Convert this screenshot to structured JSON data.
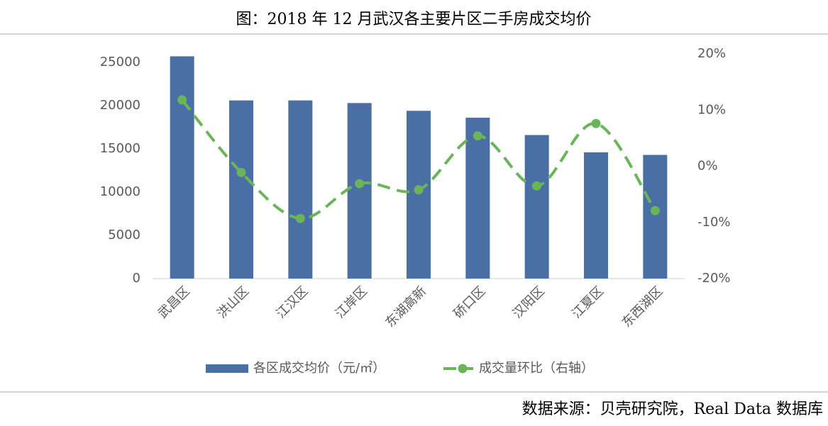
{
  "chart_data": {
    "type": "bar",
    "title": "图：2018 年 12 月武汉各主要片区二手房成交均价",
    "source": "数据来源：贝壳研究院，Real Data 数据库",
    "categories": [
      "武昌区",
      "洪山区",
      "江汉区",
      "江岸区",
      "东湖高新",
      "硚口区",
      "汉阳区",
      "江夏区",
      "东西湖区"
    ],
    "series": [
      {
        "name": "各区成交均价（元/㎡）",
        "type": "bar",
        "color": "#4a6fa5",
        "values": [
          25700,
          20600,
          20600,
          20300,
          19400,
          18600,
          16600,
          14600,
          14300
        ]
      },
      {
        "name": "成交量环比（右轴）",
        "type": "line",
        "axis": "y2",
        "color": "#6ab55a",
        "values": [
          11.8,
          -1.1,
          -9.3,
          -3.1,
          -4.2,
          5.4,
          -3.5,
          7.6,
          -7.9
        ]
      }
    ],
    "ylim": [
      0,
      25000
    ],
    "yticks": [
      0,
      5000,
      10000,
      15000,
      20000,
      25000
    ],
    "y2lim": [
      -20,
      20
    ],
    "y2ticks": [
      {
        "value": -20,
        "label": "-20%"
      },
      {
        "value": -10,
        "label": "-10%"
      },
      {
        "value": 0,
        "label": "0%"
      },
      {
        "value": 10,
        "label": "10%"
      },
      {
        "value": 20,
        "label": "20%"
      }
    ],
    "grid": false,
    "legend": "bottom"
  }
}
